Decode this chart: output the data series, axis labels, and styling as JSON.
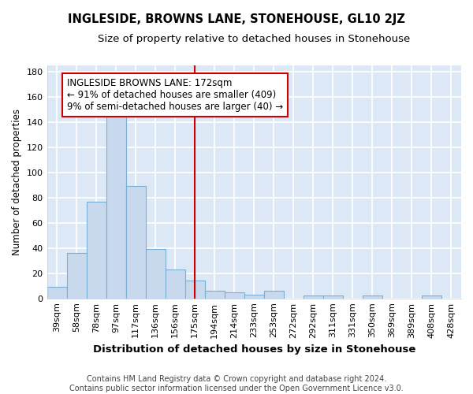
{
  "title": "INGLESIDE, BROWNS LANE, STONEHOUSE, GL10 2JZ",
  "subtitle": "Size of property relative to detached houses in Stonehouse",
  "xlabel": "Distribution of detached houses by size in Stonehouse",
  "ylabel": "Number of detached properties",
  "categories": [
    "39sqm",
    "58sqm",
    "78sqm",
    "97sqm",
    "117sqm",
    "136sqm",
    "156sqm",
    "175sqm",
    "194sqm",
    "214sqm",
    "233sqm",
    "253sqm",
    "272sqm",
    "292sqm",
    "311sqm",
    "331sqm",
    "350sqm",
    "369sqm",
    "389sqm",
    "408sqm",
    "428sqm"
  ],
  "values": [
    9,
    36,
    77,
    145,
    89,
    39,
    23,
    14,
    6,
    5,
    3,
    6,
    0,
    2,
    2,
    0,
    2,
    0,
    0,
    2,
    0
  ],
  "bar_color": "#c8d9ee",
  "bar_edgecolor": "#7aafd4",
  "vline_color": "#cc0000",
  "vline_label": "INGLESIDE BROWNS LANE: 172sqm",
  "annotation_line2": "← 91% of detached houses are smaller (409)",
  "annotation_line3": "9% of semi-detached houses are larger (40) →",
  "annotation_box_edgecolor": "#cc0000",
  "annotation_fontsize": 8.5,
  "ylim": [
    0,
    185
  ],
  "yticks": [
    0,
    20,
    40,
    60,
    80,
    100,
    120,
    140,
    160,
    180
  ],
  "background_color": "#dce8f5",
  "fig_background": "#ffffff",
  "grid_color": "#ffffff",
  "footer_line1": "Contains HM Land Registry data © Crown copyright and database right 2024.",
  "footer_line2": "Contains public sector information licensed under the Open Government Licence v3.0.",
  "title_fontsize": 10.5,
  "subtitle_fontsize": 9.5,
  "xlabel_fontsize": 9.5,
  "ylabel_fontsize": 8.5,
  "tick_fontsize": 8
}
